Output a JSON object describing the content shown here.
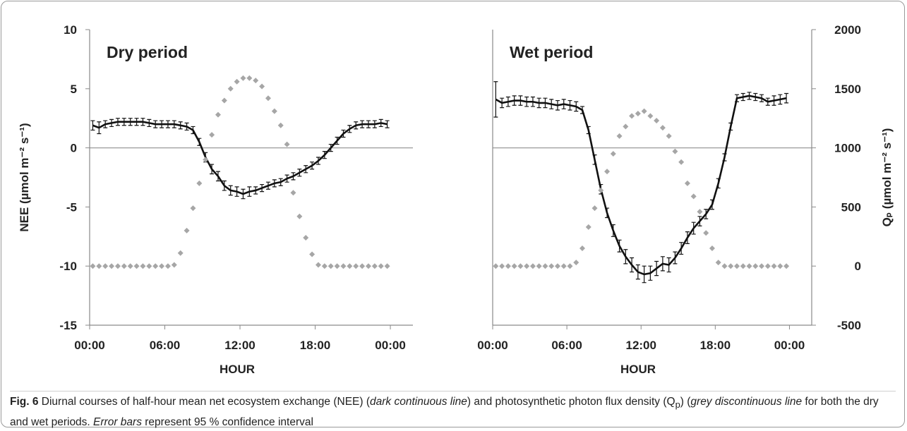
{
  "chart_data": [
    {
      "type": "line",
      "title": "Dry period",
      "x_label": "HOUR",
      "y_label": "NEE (µmol m⁻² s⁻¹)",
      "xlim": [
        0,
        25.8
      ],
      "xticks": [
        {
          "value": 0,
          "label": "00:00"
        },
        {
          "value": 6,
          "label": "06:00"
        },
        {
          "value": 12,
          "label": "12:00"
        },
        {
          "value": 18,
          "label": "18:00"
        },
        {
          "value": 24,
          "label": "00:00"
        }
      ],
      "ylim": [
        -15,
        10
      ],
      "yticks": [
        -15,
        -10,
        -5,
        0,
        5,
        10
      ],
      "y2lim": [
        -500,
        2000
      ],
      "x": [
        0.25,
        0.75,
        1.25,
        1.75,
        2.25,
        2.75,
        3.25,
        3.75,
        4.25,
        4.75,
        5.25,
        5.75,
        6.25,
        6.75,
        7.25,
        7.75,
        8.25,
        8.75,
        9.25,
        9.75,
        10.25,
        10.75,
        11.25,
        11.75,
        12.25,
        12.75,
        13.25,
        13.75,
        14.25,
        14.75,
        15.25,
        15.75,
        16.25,
        16.75,
        17.25,
        17.75,
        18.25,
        18.75,
        19.25,
        19.75,
        20.25,
        20.75,
        21.25,
        21.75,
        22.25,
        22.75,
        23.25,
        23.75
      ],
      "series": [
        {
          "color": "#111111",
          "style": "line",
          "values": [
            1.9,
            1.7,
            2.0,
            2.1,
            2.2,
            2.2,
            2.2,
            2.2,
            2.2,
            2.1,
            2.0,
            2.0,
            2.0,
            2.0,
            1.9,
            1.8,
            1.5,
            0.5,
            -0.8,
            -1.8,
            -2.4,
            -3.2,
            -3.6,
            -3.7,
            -3.9,
            -3.7,
            -3.6,
            -3.4,
            -3.2,
            -3.0,
            -2.9,
            -2.6,
            -2.4,
            -2.1,
            -1.8,
            -1.5,
            -1.1,
            -0.6,
            0,
            0.6,
            1.2,
            1.6,
            1.9,
            2.0,
            2.0,
            2.0,
            2.1,
            2.0
          ],
          "errors": [
            0.4,
            0.5,
            0.3,
            0.3,
            0.3,
            0.3,
            0.3,
            0.3,
            0.3,
            0.3,
            0.3,
            0.3,
            0.3,
            0.3,
            0.3,
            0.3,
            0.3,
            0.3,
            0.4,
            0.4,
            0.4,
            0.4,
            0.4,
            0.4,
            0.4,
            0.4,
            0.3,
            0.3,
            0.3,
            0.3,
            0.3,
            0.3,
            0.3,
            0.3,
            0.3,
            0.3,
            0.3,
            0.3,
            0.3,
            0.3,
            0.3,
            0.3,
            0.3,
            0.3,
            0.3,
            0.3,
            0.3,
            0.3
          ]
        },
        {
          "color": "#a6a6a6",
          "style": "diamond",
          "axis": "y2",
          "values": [
            0,
            0,
            0,
            0,
            0,
            0,
            0,
            0,
            0,
            0,
            0,
            0,
            0,
            10,
            110,
            300,
            490,
            700,
            900,
            1110,
            1280,
            1400,
            1500,
            1560,
            1590,
            1590,
            1570,
            1520,
            1420,
            1310,
            1190,
            1030,
            620,
            420,
            240,
            100,
            10,
            0,
            0,
            0,
            0,
            0,
            0,
            0,
            0,
            0,
            0,
            0
          ]
        }
      ]
    },
    {
      "type": "line",
      "title": "Wet period",
      "x_label": "HOUR",
      "y2_label": "Qₚ (µmol m⁻² s⁻¹)",
      "xlim": [
        0,
        25.8
      ],
      "xticks": [
        {
          "value": 0,
          "label": "00:00"
        },
        {
          "value": 6,
          "label": "06:00"
        },
        {
          "value": 12,
          "label": "12:00"
        },
        {
          "value": 18,
          "label": "18:00"
        },
        {
          "value": 24,
          "label": "00:00"
        }
      ],
      "ylim": [
        -15,
        10
      ],
      "y2lim": [
        -500,
        2000
      ],
      "y2ticks": [
        -500,
        0,
        500,
        1000,
        1500,
        2000
      ],
      "x": [
        0.25,
        0.75,
        1.25,
        1.75,
        2.25,
        2.75,
        3.25,
        3.75,
        4.25,
        4.75,
        5.25,
        5.75,
        6.25,
        6.75,
        7.25,
        7.75,
        8.25,
        8.75,
        9.25,
        9.75,
        10.25,
        10.75,
        11.25,
        11.75,
        12.25,
        12.75,
        13.25,
        13.75,
        14.25,
        14.75,
        15.25,
        15.75,
        16.25,
        16.75,
        17.25,
        17.75,
        18.25,
        18.75,
        19.25,
        19.75,
        20.25,
        20.75,
        21.25,
        21.75,
        22.25,
        22.75,
        23.25,
        23.75
      ],
      "series": [
        {
          "color": "#111111",
          "style": "line",
          "values": [
            4.1,
            3.8,
            3.9,
            4.0,
            4.0,
            3.9,
            3.9,
            3.8,
            3.8,
            3.7,
            3.6,
            3.7,
            3.6,
            3.5,
            3.2,
            1.5,
            -1.0,
            -3.5,
            -5.5,
            -7.0,
            -8.3,
            -9.2,
            -9.9,
            -10.5,
            -10.7,
            -10.6,
            -10.2,
            -9.8,
            -9.9,
            -9.3,
            -8.5,
            -7.6,
            -6.8,
            -6.2,
            -5.6,
            -4.8,
            -3.0,
            -0.8,
            1.8,
            4.2,
            4.3,
            4.4,
            4.3,
            4.2,
            3.9,
            4.0,
            4.1,
            4.2
          ],
          "errors": [
            1.5,
            0.4,
            0.4,
            0.4,
            0.4,
            0.4,
            0.4,
            0.4,
            0.4,
            0.4,
            0.4,
            0.4,
            0.4,
            0.4,
            0.3,
            0.3,
            0.4,
            0.4,
            0.4,
            0.5,
            0.5,
            0.6,
            0.6,
            0.6,
            0.7,
            0.6,
            0.6,
            0.6,
            0.6,
            0.5,
            0.5,
            0.5,
            0.5,
            0.4,
            0.4,
            0.4,
            0.4,
            0.3,
            0.3,
            0.3,
            0.3,
            0.3,
            0.3,
            0.3,
            0.3,
            0.4,
            0.4,
            0.4
          ]
        },
        {
          "color": "#a6a6a6",
          "style": "diamond",
          "axis": "y2",
          "values": [
            0,
            0,
            0,
            0,
            0,
            0,
            0,
            0,
            0,
            0,
            0,
            0,
            0,
            30,
            150,
            330,
            490,
            640,
            800,
            950,
            1100,
            1180,
            1270,
            1290,
            1310,
            1270,
            1230,
            1170,
            1100,
            970,
            880,
            700,
            590,
            460,
            280,
            150,
            30,
            0,
            0,
            0,
            0,
            0,
            0,
            0,
            0,
            0,
            0,
            0
          ]
        }
      ]
    }
  ],
  "caption": {
    "label": "Fig. 6",
    "segments": [
      {
        "text": " Diurnal courses of half-hour mean net ecosystem exchange (NEE) (",
        "style": "normal"
      },
      {
        "text": "dark continuous line",
        "style": "italic"
      },
      {
        "text": ") and photosynthetic photon flux density (Q",
        "style": "normal"
      },
      {
        "text": "p",
        "style": "sub"
      },
      {
        "text": ") (",
        "style": "normal"
      },
      {
        "text": "grey discontinuous line",
        "style": "italic"
      },
      {
        "text": " for both the dry and wet periods. ",
        "style": "normal"
      },
      {
        "text": "Error bars",
        "style": "italic"
      },
      {
        "text": " represent 95 % confidence interval",
        "style": "normal"
      }
    ]
  }
}
